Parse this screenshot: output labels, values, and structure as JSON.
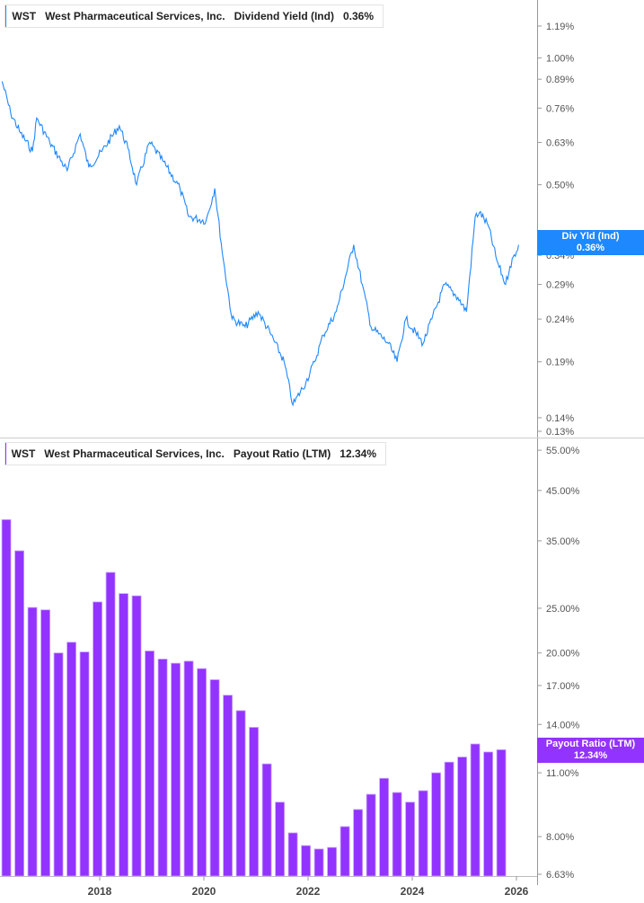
{
  "colors": {
    "yield": "#1e88ff",
    "payout": "#9333ff"
  },
  "top_legend": {
    "ticker": "WST",
    "company": "West Pharmaceutical Services, Inc.",
    "metric": "Dividend Yield (Ind)",
    "value": "0.36%"
  },
  "bottom_legend": {
    "ticker": "WST",
    "company": "West Pharmaceutical Services, Inc.",
    "metric": "Payout Ratio (LTM)",
    "value": "12.34%"
  },
  "top_tag": {
    "label": "Div Yld (Ind)",
    "value": "0.36%"
  },
  "bottom_tag": {
    "label": "Payout Ratio (LTM)",
    "value": "12.34%"
  },
  "chart_data": [
    {
      "type": "line",
      "series": [
        {
          "name": "Div Yld (Ind)"
        }
      ],
      "yscale": "log",
      "ylim": [
        0.13,
        1.19
      ],
      "yticks": [
        "1.19%",
        "1.00%",
        "0.89%",
        "0.76%",
        "0.63%",
        "0.50%",
        "0.37%",
        "0.34%",
        "0.29%",
        "0.24%",
        "0.19%",
        "0.14%",
        "0.13%"
      ],
      "x": [
        "2016-02",
        "2016-04",
        "2016-06",
        "2016-09",
        "2016-10",
        "2017-01",
        "2017-05",
        "2017-08",
        "2017-10",
        "2018-01",
        "2018-05",
        "2018-07",
        "2018-09",
        "2018-12",
        "2019-03",
        "2019-07",
        "2019-09",
        "2020-01",
        "2020-03",
        "2020-05",
        "2020-07",
        "2020-10",
        "2021-01",
        "2021-04",
        "2021-07",
        "2021-09",
        "2021-12",
        "2022-02",
        "2022-04",
        "2022-07",
        "2022-11",
        "2023-01",
        "2023-03",
        "2023-07",
        "2023-09",
        "2023-11",
        "2024-03",
        "2024-05",
        "2024-08",
        "2024-11",
        "2025-01",
        "2025-03",
        "2025-04",
        "2025-06",
        "2025-08",
        "2025-10",
        "2025-11",
        "2026-01"
      ],
      "y": [
        0.88,
        0.74,
        0.67,
        0.6,
        0.72,
        0.63,
        0.54,
        0.66,
        0.55,
        0.6,
        0.69,
        0.61,
        0.5,
        0.63,
        0.57,
        0.49,
        0.42,
        0.41,
        0.49,
        0.33,
        0.24,
        0.23,
        0.25,
        0.22,
        0.19,
        0.15,
        0.17,
        0.19,
        0.22,
        0.25,
        0.36,
        0.29,
        0.23,
        0.21,
        0.19,
        0.24,
        0.21,
        0.24,
        0.29,
        0.27,
        0.25,
        0.42,
        0.43,
        0.4,
        0.33,
        0.29,
        0.32,
        0.36
      ]
    },
    {
      "type": "bar",
      "series": [
        {
          "name": "Payout Ratio (LTM)"
        }
      ],
      "yscale": "log",
      "ylim": [
        6.63,
        55
      ],
      "yticks": [
        "55.00%",
        "45.00%",
        "35.00%",
        "25.00%",
        "20.00%",
        "17.00%",
        "14.00%",
        "11.00%",
        "8.00%",
        "6.63%"
      ],
      "categories": [
        "2016-03",
        "2016-06",
        "2016-09",
        "2016-12",
        "2017-03",
        "2017-06",
        "2017-09",
        "2017-12",
        "2018-03",
        "2018-06",
        "2018-09",
        "2018-12",
        "2019-03",
        "2019-06",
        "2019-09",
        "2019-12",
        "2020-03",
        "2020-06",
        "2020-09",
        "2020-12",
        "2021-03",
        "2021-06",
        "2021-09",
        "2021-12",
        "2022-03",
        "2022-06",
        "2022-09",
        "2022-12",
        "2023-03",
        "2023-06",
        "2023-09",
        "2023-12",
        "2024-03",
        "2024-06",
        "2024-09",
        "2024-12",
        "2025-03",
        "2025-06",
        "2025-09"
      ],
      "values": [
        38.9,
        33.3,
        25.1,
        24.8,
        20.0,
        21.1,
        20.1,
        25.8,
        29.9,
        26.9,
        26.6,
        20.2,
        19.4,
        19.0,
        19.2,
        18.5,
        17.5,
        16.2,
        15.0,
        13.8,
        11.5,
        9.5,
        8.15,
        7.65,
        7.52,
        7.58,
        8.41,
        9.16,
        9.88,
        10.7,
        9.97,
        9.5,
        10.06,
        11.0,
        11.6,
        11.9,
        12.7,
        12.2,
        12.34
      ]
    }
  ],
  "x_axis": {
    "ticks": [
      "2018",
      "2020",
      "2022",
      "2024",
      "2026"
    ]
  }
}
